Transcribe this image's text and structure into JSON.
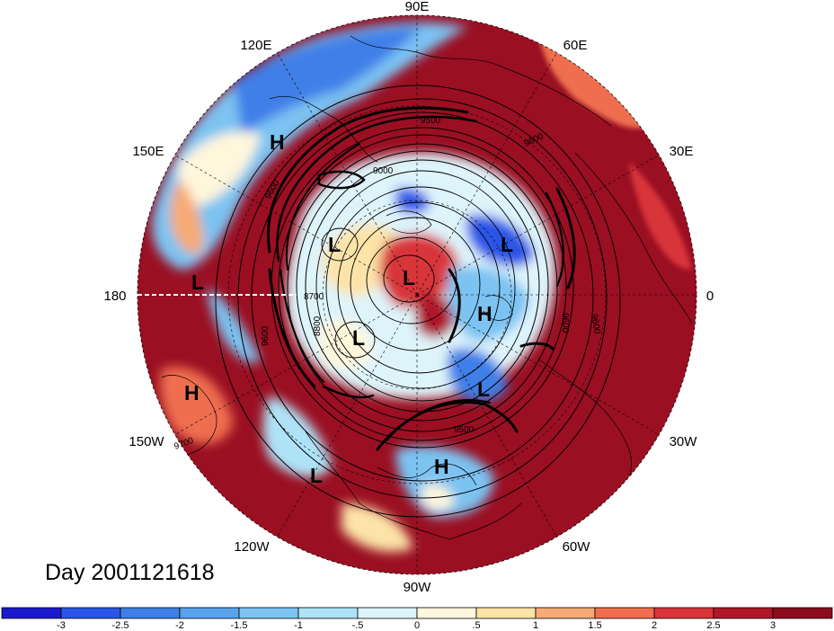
{
  "longitude_labels": [
    "90E",
    "60E",
    "30E",
    "0",
    "30W",
    "60W",
    "90W",
    "120W",
    "150W",
    "180",
    "150E",
    "120E"
  ],
  "pressure_centers": [
    {
      "type": "H",
      "label": "H"
    },
    {
      "type": "L",
      "label": "L"
    },
    {
      "type": "L",
      "label": "L"
    },
    {
      "type": "L",
      "label": "L"
    },
    {
      "type": "L",
      "label": "L"
    },
    {
      "type": "H",
      "label": "H"
    },
    {
      "type": "L",
      "label": "L"
    },
    {
      "type": "L",
      "label": "L"
    },
    {
      "type": "H",
      "label": "H"
    },
    {
      "type": "L",
      "label": "L"
    },
    {
      "type": "H",
      "label": "H"
    }
  ],
  "contour_labels": [
    "9500",
    "9600",
    "9000",
    "9600",
    "8700",
    "8800",
    "9600",
    "9600",
    "9600",
    "9700",
    "9500"
  ],
  "day_label": "Day 2001121618",
  "colorbar": {
    "tick_labels": [
      "-3",
      "-2.5",
      "-2",
      "-1.5",
      "-1",
      "-.5",
      "0",
      ".5",
      "1",
      "1.5",
      "2",
      "2.5",
      "3"
    ],
    "colors": [
      "#1a1acc",
      "#2a55e6",
      "#3f7fe8",
      "#58a2ee",
      "#7cc3f2",
      "#aee3f7",
      "#def4fb",
      "#fff6dc",
      "#fce3a8",
      "#f7aa75",
      "#ef6e50",
      "#d8343a",
      "#b0182a",
      "#8c0d1e"
    ]
  },
  "palette": {
    "warm_strong": "#9a0f22",
    "warm": "#cc2a33",
    "warm_light": "#f59a6e",
    "neutral": "#fdf0d8",
    "cool_light": "#bfe6f7",
    "cool": "#6db5ec",
    "cool_strong": "#2f6fe0"
  }
}
